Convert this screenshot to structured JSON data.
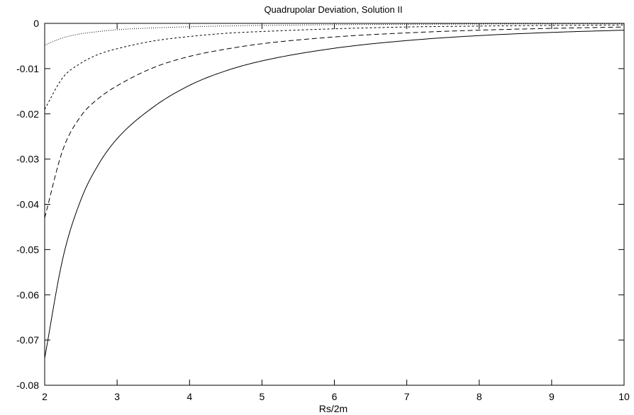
{
  "chart_data": {
    "type": "line",
    "title": "Quadrupolar Deviation, Solution II",
    "xlabel": "Rs/2m",
    "ylabel": "",
    "xlim": [
      2,
      10
    ],
    "ylim": [
      -0.08,
      0
    ],
    "xticks": [
      2,
      3,
      4,
      5,
      6,
      7,
      8,
      9,
      10
    ],
    "yticks": [
      0,
      -0.01,
      -0.02,
      -0.03,
      -0.04,
      -0.05,
      -0.06,
      -0.07,
      -0.08
    ],
    "xtick_labels": [
      "2",
      "3",
      "4",
      "5",
      "6",
      "7",
      "8",
      "9",
      "10"
    ],
    "ytick_labels": [
      "0",
      "-0.01",
      "-0.02",
      "-0.03",
      "-0.04",
      "-0.05",
      "-0.06",
      "-0.07",
      "-0.08"
    ],
    "grid": false,
    "legend": "none",
    "series": [
      {
        "style": "solid",
        "x": [
          2,
          2.25,
          2.5,
          2.75,
          3,
          3.5,
          4,
          4.5,
          5,
          6,
          7,
          8,
          9,
          10
        ],
        "y": [
          -0.074,
          -0.052,
          -0.039,
          -0.031,
          -0.0255,
          -0.0185,
          -0.0137,
          -0.0105,
          -0.0083,
          -0.0055,
          -0.0038,
          -0.0027,
          -0.002,
          -0.0015
        ]
      },
      {
        "style": "long-dash",
        "x": [
          2,
          2.25,
          2.5,
          2.75,
          3,
          3.5,
          4,
          4.5,
          5,
          6,
          7,
          8,
          9,
          10
        ],
        "y": [
          -0.043,
          -0.028,
          -0.0205,
          -0.0165,
          -0.0138,
          -0.0098,
          -0.0073,
          -0.0057,
          -0.0045,
          -0.003,
          -0.0021,
          -0.0015,
          -0.0011,
          -0.0008
        ]
      },
      {
        "style": "short-dash",
        "x": [
          2,
          2.25,
          2.5,
          2.75,
          3,
          3.5,
          4,
          4.5,
          5,
          6,
          7,
          8,
          9,
          10
        ],
        "y": [
          -0.019,
          -0.012,
          -0.0088,
          -0.0068,
          -0.0056,
          -0.0039,
          -0.0029,
          -0.0022,
          -0.0018,
          -0.0012,
          -0.0008,
          -0.0006,
          -0.00045,
          -0.00035
        ]
      },
      {
        "style": "dotted",
        "x": [
          2,
          2.25,
          2.5,
          2.75,
          3,
          3.5,
          4,
          4.5,
          5,
          6,
          7,
          8,
          9,
          10
        ],
        "y": [
          -0.0048,
          -0.0032,
          -0.0023,
          -0.0018,
          -0.0014,
          -0.001,
          -0.00075,
          -0.00058,
          -0.00046,
          -0.0003,
          -0.00021,
          -0.00015,
          -0.00011,
          -9e-05
        ]
      }
    ]
  }
}
